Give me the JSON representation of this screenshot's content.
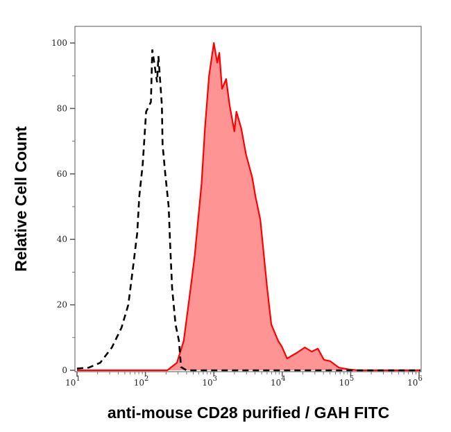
{
  "chart_data": {
    "type": "area",
    "title": "",
    "xlabel": "anti-mouse CD28 purified / GAH FITC",
    "ylabel": "Relative Cell Count",
    "x_scale": "log",
    "xlim": [
      9.3,
      1050000
    ],
    "ylim": [
      0,
      105
    ],
    "grid": false,
    "x_ticks": [
      {
        "base": "10",
        "exp": "1",
        "value": 10
      },
      {
        "base": "10",
        "exp": "2",
        "value": 100
      },
      {
        "base": "10",
        "exp": "3",
        "value": 1000
      },
      {
        "base": "10",
        "exp": "4",
        "value": 10000
      },
      {
        "base": "10",
        "exp": "5",
        "value": 100000
      },
      {
        "base": "10",
        "exp": "6",
        "value": 1000000
      }
    ],
    "y_ticks": [
      "0",
      "20",
      "40",
      "60",
      "80",
      "100"
    ],
    "series": [
      {
        "style": "filled-solid",
        "line_color": "#ff0000",
        "fill_color": "#ff9494",
        "log10_x": [
          1.0,
          2.32,
          2.46,
          2.56,
          2.66,
          2.72,
          2.82,
          2.87,
          2.93,
          3.0,
          3.05,
          3.08,
          3.12,
          3.18,
          3.23,
          3.3,
          3.33,
          3.4,
          3.47,
          3.56,
          3.61,
          3.68,
          3.78,
          3.84,
          3.94,
          4.0,
          4.07,
          4.21,
          4.33,
          4.43,
          4.52,
          4.61,
          4.7,
          4.83,
          4.97,
          5.1,
          6.02
        ],
        "y": [
          0,
          0,
          2.3,
          9,
          25,
          35,
          57,
          74,
          90,
          100,
          94,
          97,
          86,
          89,
          81,
          73,
          79,
          74,
          66,
          59,
          53,
          46,
          25,
          14,
          9,
          7,
          3.6,
          5.3,
          7,
          5.7,
          6.6,
          3.2,
          2.8,
          0.8,
          0.3,
          0,
          0
        ]
      },
      {
        "style": "dashed",
        "line_color": "#000000",
        "log10_x": [
          1.0,
          1.17,
          1.34,
          1.51,
          1.65,
          1.75,
          1.81,
          1.88,
          1.91,
          1.96,
          2.01,
          2.08,
          2.1,
          2.17,
          2.19,
          2.24,
          2.25,
          2.29,
          2.34,
          2.36,
          2.39,
          2.44,
          2.49,
          2.52,
          2.6,
          6.02
        ],
        "y": [
          0.5,
          0.8,
          2.3,
          7,
          13,
          20,
          30,
          42,
          53,
          63,
          79,
          82,
          98,
          88,
          96,
          81,
          69,
          60,
          50,
          39,
          25,
          14,
          9,
          1,
          0,
          0
        ]
      }
    ]
  }
}
